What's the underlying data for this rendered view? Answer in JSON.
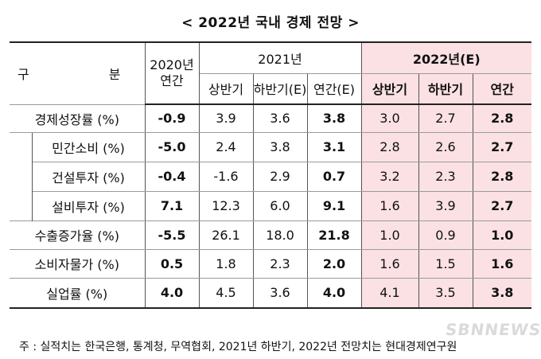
{
  "title": "< 2022년 국내 경제 전망 >",
  "header": {
    "gubun_left": "구",
    "gubun_right": "분",
    "year2020_line1": "2020년",
    "year2020_line2": "연간",
    "year2021": "2021년",
    "year2022": "2022년(E)",
    "h2021": [
      "상반기",
      "하반기(E)",
      "연간(E)"
    ],
    "h2022": [
      "상반기",
      "하반기",
      "연간"
    ]
  },
  "rows": [
    {
      "label": "경제성장률 (%)",
      "v": [
        "-0.9",
        "3.9",
        "3.6",
        "3.8",
        "3.0",
        "2.7",
        "2.8"
      ]
    },
    {
      "label": "민간소비 (%)",
      "v": [
        "-5.0",
        "2.4",
        "3.8",
        "3.1",
        "2.8",
        "2.6",
        "2.7"
      ]
    },
    {
      "label": "건설투자 (%)",
      "v": [
        "-0.4",
        "-1.6",
        "2.9",
        "0.7",
        "3.2",
        "2.3",
        "2.8"
      ]
    },
    {
      "label": "설비투자 (%)",
      "v": [
        "7.1",
        "12.3",
        "6.0",
        "9.1",
        "1.6",
        "3.9",
        "2.7"
      ]
    },
    {
      "label": "수출증가율 (%)",
      "v": [
        "-5.5",
        "26.1",
        "18.0",
        "21.8",
        "1.0",
        "0.9",
        "1.0"
      ]
    },
    {
      "label": "소비자물가 (%)",
      "v": [
        "0.5",
        "1.8",
        "2.3",
        "2.0",
        "1.6",
        "1.5",
        "1.6"
      ]
    },
    {
      "label": "실업률 (%)",
      "v": [
        "4.0",
        "4.5",
        "3.6",
        "4.0",
        "4.1",
        "3.5",
        "3.8"
      ]
    }
  ],
  "note": "주 : 실적치는 한국은행, 통계청, 무역협회, 2021년 하반기, 2022년 전망치는 현대경제연구원",
  "watermark": "SBNNEWS"
}
